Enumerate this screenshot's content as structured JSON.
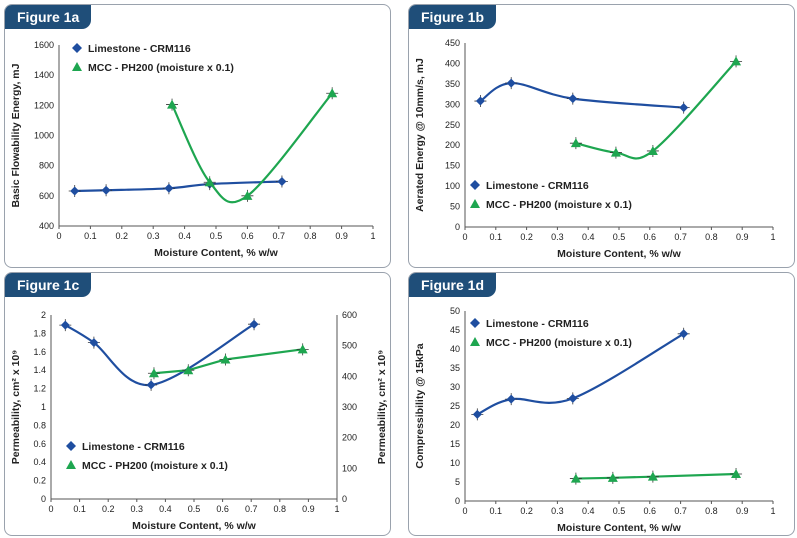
{
  "colors": {
    "limestone": "#1f4ea0",
    "mcc": "#1ea650",
    "tag_bg": "#1f4e79",
    "border": "#9aa2ad"
  },
  "chart_data": [
    {
      "type": "line",
      "label": "Figure 1a",
      "xlabel": "Moisture Content, % w/w",
      "ylabel": "Basic Flowability Energy, mJ",
      "xlim": [
        0,
        1
      ],
      "ylim": [
        400,
        1600
      ],
      "xticks": [
        "0",
        "0.1",
        "0.2",
        "0.3",
        "0.4",
        "0.5",
        "0.6",
        "0.7",
        "0.8",
        "0.9",
        "1"
      ],
      "yticks": [
        "400",
        "600",
        "800",
        "1000",
        "1200",
        "1400",
        "1600"
      ],
      "series": [
        {
          "name": "Limestone - CRM116",
          "marker": "diamond",
          "x": [
            0.05,
            0.15,
            0.35,
            0.48,
            0.71
          ],
          "y": [
            632,
            637,
            650,
            678,
            695
          ]
        },
        {
          "name": "MCC - PH200 (moisture x 0.1)",
          "marker": "triangle",
          "x": [
            0.36,
            0.48,
            0.6,
            0.87
          ],
          "y": [
            1205,
            690,
            600,
            1280
          ]
        }
      ]
    },
    {
      "type": "line",
      "label": "Figure 1b",
      "xlabel": "Moisture Content, % w/w",
      "ylabel": "Aerated Energy @ 10mm/s, mJ",
      "xlim": [
        0,
        1
      ],
      "ylim": [
        0,
        450
      ],
      "xticks": [
        "0",
        "0.1",
        "0.2",
        "0.3",
        "0.4",
        "0.5",
        "0.6",
        "0.7",
        "0.8",
        "0.9",
        "1"
      ],
      "yticks": [
        "0",
        "50",
        "100",
        "150",
        "200",
        "250",
        "300",
        "350",
        "400",
        "450"
      ],
      "series": [
        {
          "name": "Limestone - CRM116",
          "marker": "diamond",
          "x": [
            0.05,
            0.15,
            0.35,
            0.71
          ],
          "y": [
            308,
            352,
            314,
            292
          ]
        },
        {
          "name": "MCC - PH200 (moisture x 0.1)",
          "marker": "triangle",
          "x": [
            0.36,
            0.49,
            0.61,
            0.88
          ],
          "y": [
            205,
            182,
            186,
            405
          ]
        }
      ]
    },
    {
      "type": "line",
      "label": "Figure 1c",
      "xlabel": "Moisture Content, % w/w",
      "ylabel": "Permeability, cm² x 10⁹",
      "y2label": "Permeability, cm² x 10⁹",
      "xlim": [
        0,
        1
      ],
      "ylim": [
        0,
        2
      ],
      "y2lim": [
        0,
        600
      ],
      "xticks": [
        "0",
        "0.1",
        "0.2",
        "0.3",
        "0.4",
        "0.5",
        "0.6",
        "0.7",
        "0.8",
        "0.9",
        "1"
      ],
      "yticks": [
        "0",
        "0.2",
        "0.4",
        "0.6",
        "0.8",
        "1",
        "1.2",
        "1.4",
        "1.6",
        "1.8",
        "2"
      ],
      "y2ticks": [
        "0",
        "100",
        "200",
        "300",
        "400",
        "500",
        "600"
      ],
      "series": [
        {
          "name": "Limestone - CRM116",
          "marker": "diamond",
          "axis": "left",
          "x": [
            0.05,
            0.15,
            0.35,
            0.71
          ],
          "y": [
            1.89,
            1.7,
            1.24,
            1.9
          ]
        },
        {
          "name": "MCC - PH200 (moisture x 0.1)",
          "marker": "triangle",
          "axis": "right",
          "x": [
            0.36,
            0.48,
            0.61,
            0.88
          ],
          "y": [
            410,
            420,
            455,
            488
          ]
        }
      ]
    },
    {
      "type": "line",
      "label": "Figure 1d",
      "xlabel": "Moisture Content, % w/w",
      "ylabel": "Compressibility @ 15kPa",
      "xlim": [
        0,
        1
      ],
      "ylim": [
        0,
        50
      ],
      "xticks": [
        "0",
        "0.1",
        "0.2",
        "0.3",
        "0.4",
        "0.5",
        "0.6",
        "0.7",
        "0.8",
        "0.9",
        "1"
      ],
      "yticks": [
        "0",
        "5",
        "10",
        "15",
        "20",
        "25",
        "30",
        "35",
        "40",
        "45",
        "50"
      ],
      "series": [
        {
          "name": "Limestone - CRM116",
          "marker": "diamond",
          "x": [
            0.04,
            0.15,
            0.35,
            0.71
          ],
          "y": [
            22.8,
            26.8,
            27.0,
            44.0
          ]
        },
        {
          "name": "MCC - PH200 (moisture x 0.1)",
          "marker": "triangle",
          "x": [
            0.36,
            0.48,
            0.61,
            0.88
          ],
          "y": [
            5.9,
            6.1,
            6.4,
            7.1
          ]
        }
      ]
    }
  ]
}
